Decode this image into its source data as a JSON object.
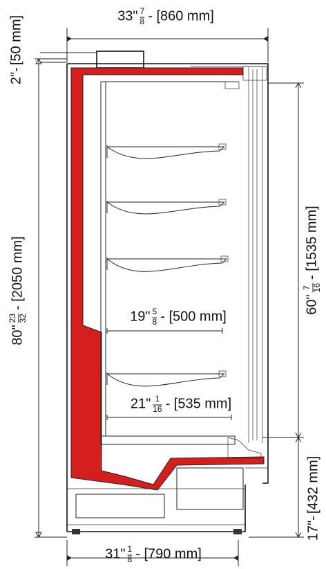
{
  "dimensions": [
    {
      "whole": "33\"",
      "numerator": "7",
      "denominator": "8",
      "metric": "- [860 mm]"
    },
    {
      "whole": "2\"-",
      "metric": "[50 mm]"
    },
    {
      "whole": "80\"",
      "numerator": "23",
      "denominator": "32",
      "metric": "- [2050 mm]"
    },
    {
      "whole": "60\"",
      "numerator": "7",
      "denominator": "16",
      "metric": "- [1535 mm]"
    },
    {
      "whole": "19\"",
      "numerator": "5",
      "denominator": "8",
      "metric": "- [500 mm]"
    },
    {
      "whole": "21\"",
      "numerator": "1",
      "denominator": "16",
      "metric": "- [535 mm]"
    },
    {
      "whole": "17\"-",
      "metric": "[432 mm]"
    },
    {
      "whole": "31\"",
      "numerator": "1",
      "denominator": "8",
      "metric": "- [790 mm]"
    }
  ]
}
